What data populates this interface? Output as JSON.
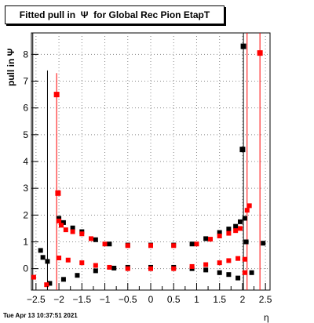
{
  "title": "Fitted pull in  Ψ  for Global Rec Pion EtapT",
  "timestamp": "Tue Apr 13 10:37:51 2021",
  "colors": {
    "series_black": "#000000",
    "series_red": "#ff0000",
    "frame": "#000000",
    "grid": "#888888"
  },
  "chart_data": {
    "type": "scatter",
    "title": "Fitted pull in  Ψ  for Global Rec Pion EtapT",
    "xlabel": "η",
    "ylabel": "pull in  Ψ",
    "xlim": [
      -2.6,
      2.6
    ],
    "ylim": [
      -0.8,
      8.8
    ],
    "x_ticks": [
      -2.5,
      -2,
      -1.5,
      -1,
      -0.5,
      0,
      0.5,
      1,
      1.5,
      2,
      2.5
    ],
    "x_tick_labels": [
      "−2.5",
      "−2",
      "−1.5",
      "−1",
      "−0.5",
      "0",
      "0.5",
      "1",
      "1.5",
      "2",
      "2.5"
    ],
    "y_ticks": [
      0,
      1,
      2,
      3,
      4,
      5,
      6,
      7,
      8
    ],
    "y_tick_labels": [
      "0",
      "1",
      "2",
      "3",
      "4",
      "5",
      "6",
      "7",
      "8"
    ],
    "grid": true,
    "series": [
      {
        "color": "#000000",
        "points": [
          [
            -2.4,
            0.68
          ],
          [
            -2.35,
            0.42
          ],
          [
            -2.25,
            0.27
          ],
          [
            -2.0,
            1.88
          ],
          [
            -1.9,
            1.72
          ],
          [
            -1.7,
            1.52
          ],
          [
            -1.5,
            1.38
          ],
          [
            -1.2,
            1.08
          ],
          [
            -0.9,
            0.92
          ],
          [
            -0.5,
            0.88
          ],
          [
            0.0,
            0.88
          ],
          [
            0.5,
            0.88
          ],
          [
            0.9,
            0.92
          ],
          [
            1.2,
            1.12
          ],
          [
            1.5,
            1.35
          ],
          [
            1.7,
            1.48
          ],
          [
            1.85,
            1.58
          ],
          [
            1.95,
            1.75
          ],
          [
            2.0,
            4.45
          ],
          [
            2.02,
            8.3
          ],
          [
            2.05,
            1.88
          ],
          [
            2.08,
            1.0
          ],
          [
            2.2,
            -0.15
          ],
          [
            2.45,
            0.95
          ],
          [
            -2.2,
            -0.55
          ],
          [
            -1.9,
            -0.4
          ],
          [
            -1.6,
            -0.25
          ],
          [
            -1.2,
            -0.08
          ],
          [
            -0.8,
            0.02
          ],
          [
            -0.5,
            0.05
          ],
          [
            0.0,
            0.05
          ],
          [
            0.5,
            0.05
          ],
          [
            0.9,
            0.0
          ],
          [
            1.2,
            -0.05
          ],
          [
            1.5,
            -0.15
          ],
          [
            1.7,
            -0.22
          ],
          [
            1.9,
            -0.35
          ]
        ]
      },
      {
        "color": "#ff0000",
        "points": [
          [
            -2.55,
            -0.32
          ],
          [
            -2.27,
            -0.6
          ],
          [
            -2.05,
            6.5
          ],
          [
            -2.02,
            2.82
          ],
          [
            -2.0,
            1.78
          ],
          [
            -1.95,
            1.62
          ],
          [
            -1.85,
            1.45
          ],
          [
            -1.7,
            1.38
          ],
          [
            -1.5,
            1.3
          ],
          [
            -1.3,
            1.12
          ],
          [
            -1.0,
            0.92
          ],
          [
            -0.5,
            0.86
          ],
          [
            0.0,
            0.86
          ],
          [
            0.5,
            0.86
          ],
          [
            1.0,
            0.92
          ],
          [
            1.3,
            1.1
          ],
          [
            1.5,
            1.22
          ],
          [
            1.7,
            1.32
          ],
          [
            1.85,
            1.42
          ],
          [
            1.95,
            1.5
          ],
          [
            2.05,
            -0.15
          ],
          [
            2.1,
            2.18
          ],
          [
            2.15,
            2.35
          ],
          [
            2.38,
            8.05
          ],
          [
            -2.0,
            0.4
          ],
          [
            -1.8,
            0.32
          ],
          [
            -1.5,
            0.22
          ],
          [
            -1.2,
            0.12
          ],
          [
            -0.9,
            0.05
          ],
          [
            -0.5,
            0.0
          ],
          [
            0.0,
            0.0
          ],
          [
            0.5,
            0.0
          ],
          [
            0.9,
            0.08
          ],
          [
            1.2,
            0.15
          ],
          [
            1.5,
            0.22
          ],
          [
            1.7,
            0.3
          ],
          [
            1.9,
            0.38
          ],
          [
            2.05,
            0.35
          ]
        ]
      }
    ]
  }
}
